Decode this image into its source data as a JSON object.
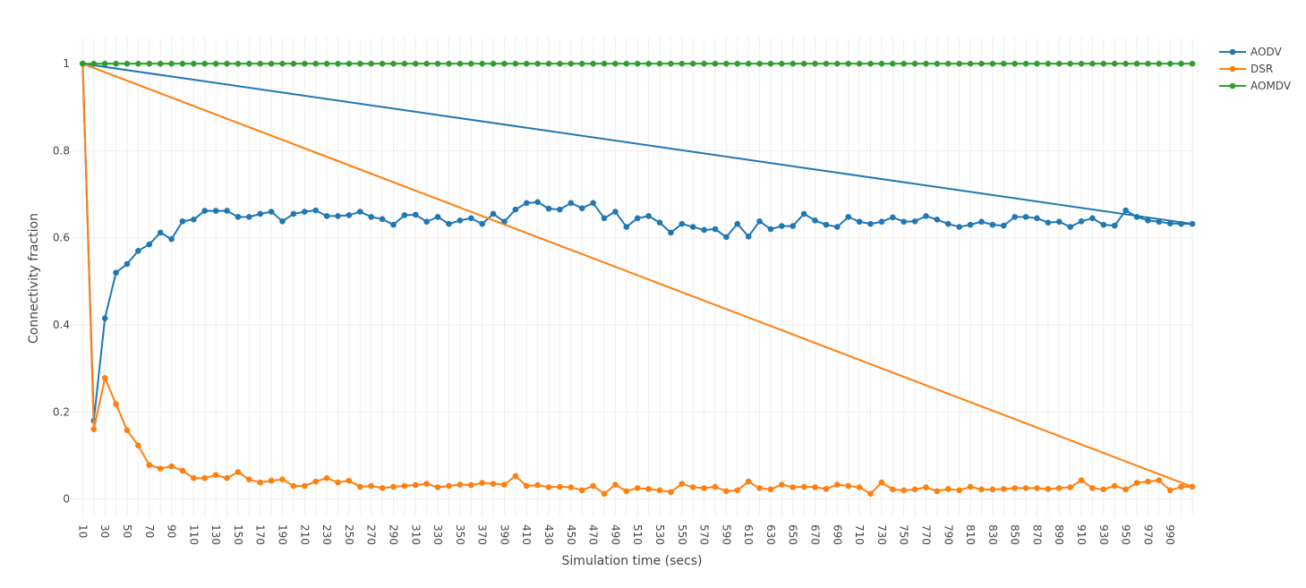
{
  "chart_data": {
    "type": "line",
    "xlabel": "Simulation time (secs)",
    "ylabel": "Connectivity fraction",
    "xlim": [
      0,
      1010
    ],
    "ylim": [
      -0.04,
      1.06
    ],
    "xticks": [
      10,
      30,
      50,
      70,
      90,
      110,
      130,
      150,
      170,
      190,
      210,
      230,
      250,
      270,
      290,
      310,
      330,
      350,
      370,
      390,
      410,
      430,
      450,
      470,
      490,
      510,
      530,
      550,
      570,
      590,
      610,
      630,
      650,
      670,
      690,
      710,
      730,
      750,
      770,
      790,
      810,
      830,
      850,
      870,
      890,
      910,
      930,
      950,
      970,
      990
    ],
    "yticks": [
      0,
      0.2,
      0.4,
      0.6,
      0.8,
      1
    ],
    "ytick_labels": [
      "0",
      "0.2",
      "0.4",
      "0.6",
      "0.8",
      "1"
    ],
    "grid": true,
    "legend_position": "top-right",
    "x": [
      10,
      20,
      30,
      40,
      50,
      60,
      70,
      80,
      90,
      100,
      110,
      120,
      130,
      140,
      150,
      160,
      170,
      180,
      190,
      200,
      210,
      220,
      230,
      240,
      250,
      260,
      270,
      280,
      290,
      300,
      310,
      320,
      330,
      340,
      350,
      360,
      370,
      380,
      390,
      400,
      410,
      420,
      430,
      440,
      450,
      460,
      470,
      480,
      490,
      500,
      510,
      520,
      530,
      540,
      550,
      560,
      570,
      580,
      590,
      600,
      610,
      620,
      630,
      640,
      650,
      660,
      670,
      680,
      690,
      700,
      710,
      720,
      730,
      740,
      750,
      760,
      770,
      780,
      790,
      800,
      810,
      820,
      830,
      840,
      850,
      860,
      870,
      880,
      890,
      900,
      910,
      920,
      930,
      940,
      950,
      960,
      970,
      980,
      990,
      1000,
      1010,
      10
    ],
    "series": [
      {
        "name": "AODV",
        "color": "#1f77b4",
        "values": [
          1,
          0.18,
          0.415,
          0.52,
          0.54,
          0.57,
          0.585,
          0.612,
          0.597,
          0.638,
          0.642,
          0.662,
          0.662,
          0.662,
          0.648,
          0.648,
          0.655,
          0.66,
          0.638,
          0.655,
          0.66,
          0.663,
          0.65,
          0.65,
          0.652,
          0.66,
          0.648,
          0.643,
          0.63,
          0.652,
          0.653,
          0.637,
          0.648,
          0.632,
          0.64,
          0.645,
          0.632,
          0.655,
          0.637,
          0.665,
          0.68,
          0.682,
          0.667,
          0.665,
          0.68,
          0.668,
          0.68,
          0.645,
          0.66,
          0.625,
          0.645,
          0.65,
          0.635,
          0.612,
          0.632,
          0.625,
          0.618,
          0.62,
          0.602,
          0.632,
          0.603,
          0.638,
          0.62,
          0.627,
          0.627,
          0.655,
          0.64,
          0.63,
          0.625,
          0.648,
          0.637,
          0.632,
          0.637,
          0.647,
          0.637,
          0.638,
          0.65,
          0.642,
          0.632,
          0.625,
          0.63,
          0.637,
          0.63,
          0.628,
          0.648,
          0.648,
          0.645,
          0.635,
          0.637,
          0.625,
          0.638,
          0.645,
          0.63,
          0.628,
          0.663,
          0.648,
          0.64,
          0.637,
          0.633,
          0.632,
          0.632,
          1
        ]
      },
      {
        "name": "DSR",
        "color": "#ff7f0e",
        "values": [
          1,
          0.16,
          0.278,
          0.218,
          0.158,
          0.123,
          0.078,
          0.07,
          0.075,
          0.065,
          0.048,
          0.048,
          0.055,
          0.048,
          0.062,
          0.045,
          0.038,
          0.042,
          0.045,
          0.03,
          0.03,
          0.04,
          0.048,
          0.038,
          0.042,
          0.028,
          0.03,
          0.025,
          0.028,
          0.03,
          0.032,
          0.035,
          0.027,
          0.03,
          0.033,
          0.032,
          0.037,
          0.035,
          0.033,
          0.053,
          0.03,
          0.032,
          0.027,
          0.028,
          0.027,
          0.02,
          0.03,
          0.012,
          0.033,
          0.018,
          0.025,
          0.023,
          0.02,
          0.016,
          0.035,
          0.027,
          0.025,
          0.028,
          0.018,
          0.02,
          0.04,
          0.025,
          0.022,
          0.033,
          0.027,
          0.028,
          0.027,
          0.023,
          0.033,
          0.03,
          0.027,
          0.012,
          0.038,
          0.022,
          0.02,
          0.022,
          0.027,
          0.018,
          0.023,
          0.02,
          0.028,
          0.022,
          0.022,
          0.023,
          0.025,
          0.025,
          0.025,
          0.023,
          0.025,
          0.027,
          0.043,
          0.025,
          0.022,
          0.03,
          0.022,
          0.037,
          0.04,
          0.043,
          0.02,
          0.028,
          0.028,
          1
        ]
      },
      {
        "name": "AOMDV",
        "color": "#2ca02c",
        "values": [
          1,
          1,
          1,
          1,
          1,
          1,
          1,
          1,
          1,
          1,
          1,
          1,
          1,
          1,
          1,
          1,
          1,
          1,
          1,
          1,
          1,
          1,
          1,
          1,
          1,
          1,
          1,
          1,
          1,
          1,
          1,
          1,
          1,
          1,
          1,
          1,
          1,
          1,
          1,
          1,
          1,
          1,
          1,
          1,
          1,
          1,
          1,
          1,
          1,
          1,
          1,
          1,
          1,
          1,
          1,
          1,
          1,
          1,
          1,
          1,
          1,
          1,
          1,
          1,
          1,
          1,
          1,
          1,
          1,
          1,
          1,
          1,
          1,
          1,
          1,
          1,
          1,
          1,
          1,
          1,
          1,
          1,
          1,
          1,
          1,
          1,
          1,
          1,
          1,
          1,
          1,
          1,
          1,
          1,
          1,
          1,
          1,
          1,
          1,
          1,
          1,
          1
        ]
      }
    ]
  }
}
